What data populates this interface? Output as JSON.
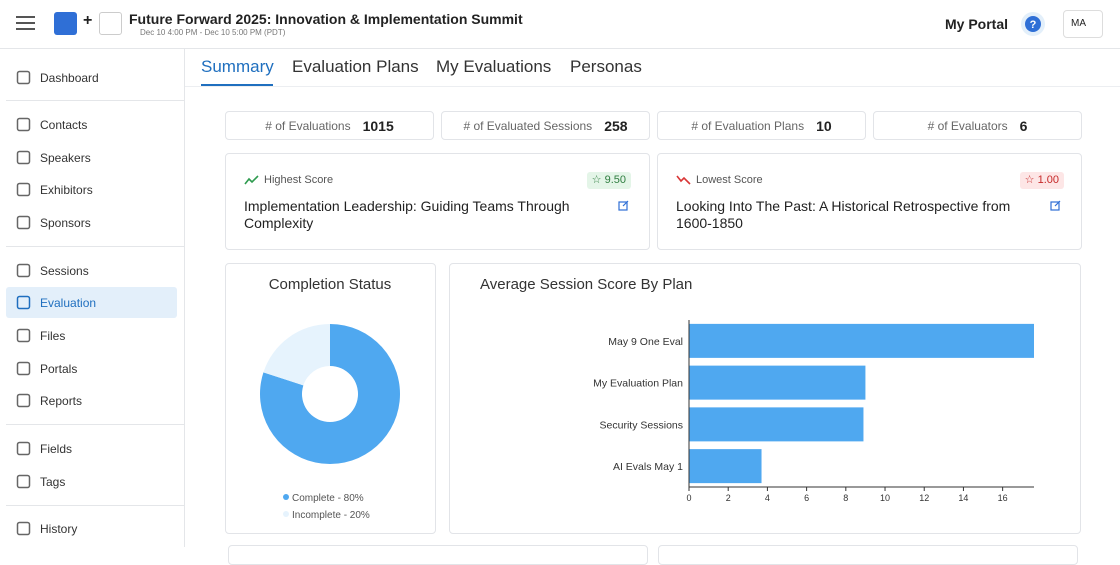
{
  "header": {
    "title": "Future Forward 2025: Innovation & Implementation Summit",
    "date": "Dec 10 4:00 PM - Dec 10 5:00 PM (PDT)",
    "portal": "My Portal",
    "user": "MA"
  },
  "sidebar": {
    "items": [
      "Dashboard",
      "Contacts",
      "Speakers",
      "Exhibitors",
      "Sponsors",
      "Sessions",
      "Evaluation",
      "Files",
      "Portals",
      "Reports",
      "Fields",
      "Tags",
      "History"
    ]
  },
  "tabs": [
    "Summary",
    "Evaluation Plans",
    "My Evaluations",
    "Personas"
  ],
  "stats": [
    {
      "label": "# of Evaluations",
      "value": 1015
    },
    {
      "label": "# of Evaluated Sessions",
      "value": 258
    },
    {
      "label": "# of Evaluation Plans",
      "value": 10
    },
    {
      "label": "# of Evaluators",
      "value": 6
    }
  ],
  "highlights": [
    {
      "label": "Highest Score",
      "score": "9.50",
      "session": "Implementation Leadership: Guiding Teams Through Complexity"
    },
    {
      "label": "Lowest Score",
      "score": "1.00",
      "session": "Looking Into The Past: A Historical Retrospective from 1600-1850"
    }
  ],
  "chart_data": [
    {
      "type": "pie",
      "title": "Completion Status",
      "categories": [
        "Complete - 80%",
        "Incomplete - 20%"
      ],
      "values": [
        80,
        20
      ],
      "colors": [
        "#4fa8f0",
        "#e6f3fd"
      ]
    },
    {
      "type": "bar",
      "orientation": "horizontal",
      "title": "Average Session Score By Plan",
      "categories": [
        "May 9 One Eval",
        "My Evaluation Plan",
        "Security Sessions",
        "AI Evals May 1"
      ],
      "values": [
        17.6,
        9.0,
        8.9,
        3.7
      ],
      "color": "#4fa8f0",
      "xlim": [
        0,
        17.6
      ],
      "xticks": [
        0,
        2,
        4,
        6,
        8,
        10,
        12,
        14,
        16
      ]
    }
  ]
}
